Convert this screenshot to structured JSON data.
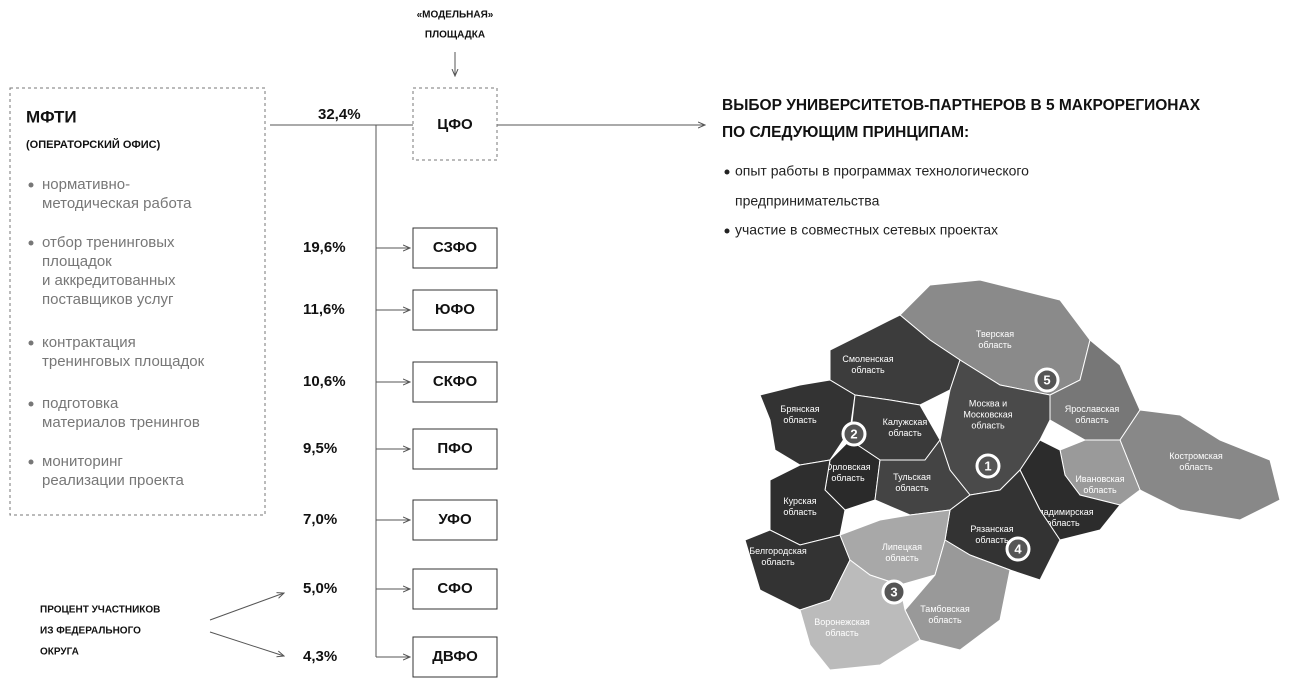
{
  "model_label": [
    "«МОДЕЛЬНАЯ»",
    "ПЛОЩАДКА"
  ],
  "operator": {
    "title": "МФТИ",
    "subtitle": "(ОПЕРАТОРСКИЙ ОФИС)",
    "items": [
      [
        "нормативно-",
        "методическая работа"
      ],
      [
        "отбор тренинговых",
        "площадок",
        "и аккредитованных",
        "поставщиков услуг"
      ],
      [
        "контрактация",
        "тренинговых площадок"
      ],
      [
        "подготовка",
        "материалов тренингов"
      ],
      [
        "мониторинг",
        "реализации проекта"
      ]
    ]
  },
  "districts": [
    {
      "label": "ЦФО",
      "share": "32,4%"
    },
    {
      "label": "СЗФО",
      "share": "19,6%"
    },
    {
      "label": "ЮФО",
      "share": "11,6%"
    },
    {
      "label": "СКФО",
      "share": "10,6%"
    },
    {
      "label": "ПФО",
      "share": "9,5%"
    },
    {
      "label": "УФО",
      "share": "7,0%"
    },
    {
      "label": "СФО",
      "share": "5,0%"
    },
    {
      "label": "ДВФО",
      "share": "4,3%"
    }
  ],
  "note": [
    "ПРОЦЕНТ УЧАСТНИКОВ",
    "ИЗ ФЕДЕРАЛЬНОГО",
    "ОКРУГА"
  ],
  "selection": {
    "heading": [
      "ВЫБОР УНИВЕРСИТЕТОВ-ПАРТНЕРОВ В 5 МАКРОРЕГИОНАХ",
      "ПО СЛЕДУЮЩИМ ПРИНЦИПАМ:"
    ],
    "bullets": [
      [
        "опыт работы в программах технологического",
        "предпринимательства"
      ],
      [
        "участие в совместных сетевых проектах"
      ]
    ]
  },
  "map": {
    "regions": [
      [
        "Тверская",
        "область"
      ],
      [
        "Смоленская",
        "область"
      ],
      [
        "Ярославская",
        "область"
      ],
      [
        "Костромская",
        "область"
      ],
      [
        "Ивановская",
        "область"
      ],
      [
        "Москва и",
        "Московская",
        "область"
      ],
      [
        "Владимирская",
        "область"
      ],
      [
        "Брянская",
        "область"
      ],
      [
        "Калужская",
        "область"
      ],
      [
        "Орловская",
        "область"
      ],
      [
        "Тульская",
        "область"
      ],
      [
        "Курская",
        "область"
      ],
      [
        "Рязанская",
        "область"
      ],
      [
        "Белгородская",
        "область"
      ],
      [
        "Липецкая",
        "область"
      ],
      [
        "Тамбовская",
        "область"
      ],
      [
        "Воронежская",
        "область"
      ]
    ],
    "markers": [
      "1",
      "2",
      "3",
      "4",
      "5"
    ]
  }
}
